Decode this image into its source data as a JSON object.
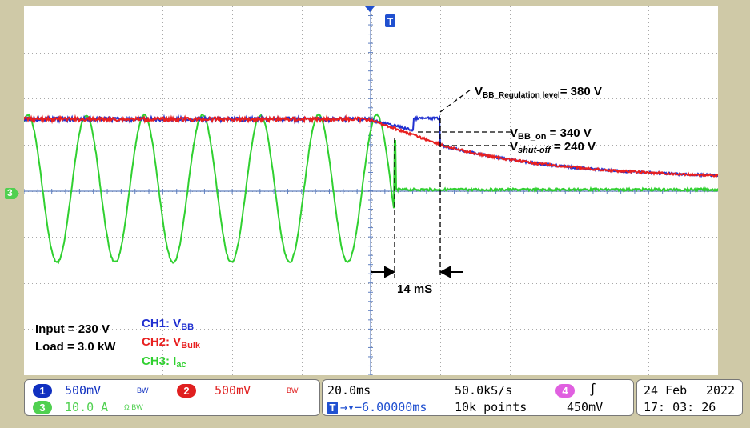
{
  "plot": {
    "trigger_marker": "T",
    "ch3_marker": "3",
    "annotations": {
      "reg_prefix": "V",
      "reg_sub": "BB_Regulation level",
      "reg_suffix": "= 380 V",
      "on_prefix": "V",
      "on_sub": "BB_on",
      "on_suffix": " = 340 V",
      "off_prefix": "V",
      "off_sub": "shut-off",
      "off_suffix": " = 240 V",
      "time_label": "14 mS"
    },
    "legend": {
      "input": "Input = 230 V",
      "load": "Load = 3.0 kW",
      "ch1_prefix": "CH1: V",
      "ch1_sub": "BB",
      "ch2_prefix": "CH2: V",
      "ch2_sub": "Bulk",
      "ch3_prefix": "CH3: I",
      "ch3_sub": "ac"
    },
    "colors": {
      "ch1": "#2030d0",
      "ch2": "#e82020",
      "ch3": "#30d030",
      "grid": "#a8a8a8",
      "center_axis": "#6080c0"
    }
  },
  "status": {
    "ch1": {
      "num": "1",
      "scale": "500mV",
      "bw": "BW"
    },
    "ch2": {
      "num": "2",
      "scale": "500mV",
      "bw": "BW"
    },
    "ch3": {
      "num": "3",
      "scale": "10.0 A",
      "bw": "Ω BW"
    },
    "ch4": {
      "num": "4",
      "edge": "∫"
    },
    "timebase": "20.0ms",
    "sample_rate": "50.0kS/s",
    "record": "10k points",
    "trigger_level": "450mV",
    "trigger_position_icon": "T",
    "trigger_position": "→▾−6.00000ms",
    "date": "24 Feb",
    "year": "2022",
    "time": "17: 03: 26"
  }
}
